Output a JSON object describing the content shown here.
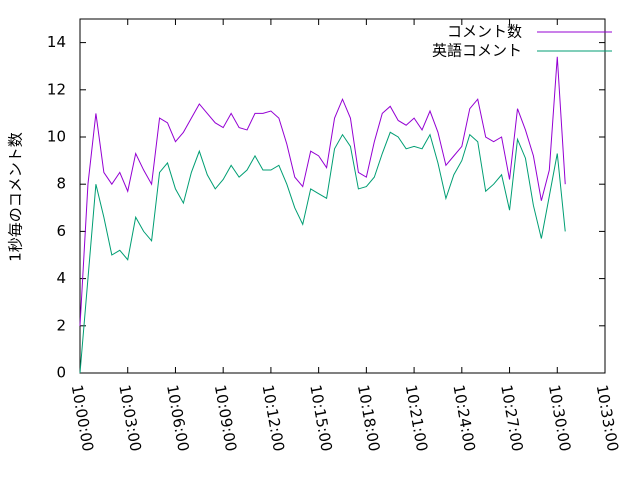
{
  "chart_data": {
    "type": "line",
    "ylabel": "1秒毎のコメント数",
    "x": [
      "10:00:00",
      "10:00:30",
      "10:01:00",
      "10:01:30",
      "10:02:00",
      "10:02:30",
      "10:03:00",
      "10:03:30",
      "10:04:00",
      "10:04:30",
      "10:05:00",
      "10:05:30",
      "10:06:00",
      "10:06:30",
      "10:07:00",
      "10:07:30",
      "10:08:00",
      "10:08:30",
      "10:09:00",
      "10:09:30",
      "10:10:00",
      "10:10:30",
      "10:11:00",
      "10:11:30",
      "10:12:00",
      "10:12:30",
      "10:13:00",
      "10:13:30",
      "10:14:00",
      "10:14:30",
      "10:15:00",
      "10:15:30",
      "10:16:00",
      "10:16:30",
      "10:17:00",
      "10:17:30",
      "10:18:00",
      "10:18:30",
      "10:19:00",
      "10:19:30",
      "10:20:00",
      "10:20:30",
      "10:21:00",
      "10:21:30",
      "10:22:00",
      "10:22:30",
      "10:23:00",
      "10:23:30",
      "10:24:00",
      "10:24:30",
      "10:25:00",
      "10:25:30",
      "10:26:00",
      "10:26:30",
      "10:27:00",
      "10:27:30",
      "10:28:00",
      "10:28:30",
      "10:29:00",
      "10:29:30",
      "10:30:00",
      "10:30:30"
    ],
    "series": [
      {
        "name": "コメント数",
        "color": "#9400d3",
        "values": [
          2.0,
          8.0,
          11.0,
          8.5,
          8.0,
          8.5,
          7.7,
          9.3,
          8.6,
          8.0,
          10.8,
          10.6,
          9.8,
          10.2,
          10.8,
          11.4,
          11.0,
          10.6,
          10.4,
          11.0,
          10.4,
          10.3,
          11.0,
          11.0,
          11.1,
          10.8,
          9.7,
          8.3,
          7.9,
          9.4,
          9.2,
          8.7,
          10.8,
          11.6,
          10.8,
          8.5,
          8.3,
          9.8,
          11.0,
          11.3,
          10.7,
          10.5,
          10.8,
          10.3,
          11.1,
          10.2,
          8.8,
          9.2,
          9.6,
          11.2,
          11.6,
          10.0,
          9.8,
          10.0,
          8.2,
          11.2,
          10.3,
          9.2,
          7.3,
          8.6,
          13.4,
          8.0
        ]
      },
      {
        "name": "英語コメント",
        "color": "#009e73",
        "values": [
          0,
          4.0,
          8.0,
          6.6,
          5.0,
          5.2,
          4.8,
          6.6,
          6.0,
          5.6,
          8.5,
          8.9,
          7.8,
          7.2,
          8.5,
          9.4,
          8.4,
          7.8,
          8.2,
          8.8,
          8.3,
          8.6,
          9.2,
          8.6,
          8.6,
          8.8,
          8.0,
          7.0,
          6.3,
          7.8,
          7.6,
          7.4,
          9.5,
          10.1,
          9.6,
          7.8,
          7.9,
          8.3,
          9.3,
          10.2,
          10.0,
          9.5,
          9.6,
          9.5,
          10.1,
          8.9,
          7.4,
          8.4,
          9.0,
          10.1,
          9.8,
          7.7,
          8.0,
          8.4,
          6.9,
          9.9,
          9.1,
          7.1,
          5.7,
          7.5,
          9.3,
          6.0
        ]
      }
    ],
    "xlim": [
      "10:00:00",
      "10:33:00"
    ],
    "xticks": [
      "10:00:00",
      "10:03:00",
      "10:06:00",
      "10:09:00",
      "10:12:00",
      "10:15:00",
      "10:18:00",
      "10:21:00",
      "10:24:00",
      "10:27:00",
      "10:30:00",
      "10:33:00"
    ],
    "ylim": [
      0,
      15
    ],
    "yticks": [
      0,
      2,
      4,
      6,
      8,
      10,
      12,
      14
    ],
    "legend": "top-right"
  }
}
